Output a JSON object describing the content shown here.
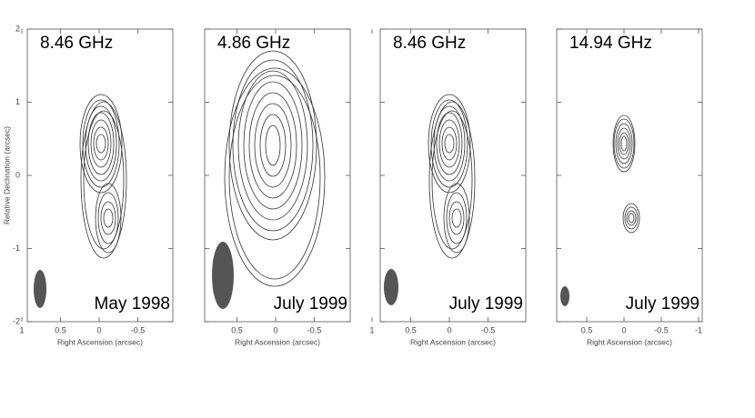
{
  "figure": {
    "y_axis_label": "Relative Declination (arcsec)",
    "yticks": [
      2,
      1,
      0,
      -1,
      -2
    ],
    "panels": [
      {
        "frequency": "8.46 GHz",
        "date": "May 1998",
        "x_axis_label": "Right Ascension (arcsec)",
        "xticks": [
          1,
          0.5,
          0,
          -0.5
        ]
      },
      {
        "frequency": "4.86 GHz",
        "date": "July 1999",
        "x_axis_label": "Right Ascension (arcsec)",
        "xticks": [
          0.5,
          0,
          -0.5
        ]
      },
      {
        "frequency": "8.46 GHz",
        "date": "July 1999",
        "x_axis_label": "Right Ascension (arcsec)",
        "xticks": [
          1,
          0.5,
          0,
          -0.5
        ]
      },
      {
        "frequency": "14.94 GHz",
        "date": "July 1999",
        "x_axis_label": "Right Ascension (arcsec)",
        "xticks": [
          0.5,
          0,
          -0.5,
          -1
        ]
      }
    ]
  }
}
